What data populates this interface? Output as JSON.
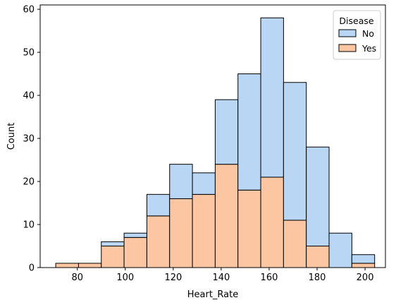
{
  "chart_data": {
    "type": "bar",
    "chart_kind": "stacked histogram",
    "xlabel": "Heart_Rate",
    "ylabel": "Count",
    "xlim": [
      64.5,
      208.5
    ],
    "ylim": [
      0,
      61
    ],
    "x_ticks": [
      80,
      100,
      120,
      140,
      160,
      180,
      200
    ],
    "y_ticks": [
      0,
      10,
      20,
      30,
      40,
      50,
      60
    ],
    "bin_edges": [
      71,
      80.5,
      90,
      99.5,
      109,
      118.5,
      128,
      137.5,
      147,
      156.5,
      166,
      175.5,
      185,
      194.5,
      204
    ],
    "grid": false,
    "legend": {
      "title": "Disease",
      "placement": "top-right"
    },
    "series": [
      {
        "name": "No",
        "color": "#b9d6f5",
        "values": [
          0,
          0,
          1,
          1,
          5,
          8,
          5,
          15,
          27,
          37,
          32,
          23,
          8,
          2
        ]
      },
      {
        "name": "Yes",
        "color": "#fdc6a2",
        "values": [
          1,
          1,
          5,
          7,
          12,
          16,
          17,
          24,
          18,
          21,
          11,
          5,
          0,
          1
        ]
      }
    ]
  }
}
